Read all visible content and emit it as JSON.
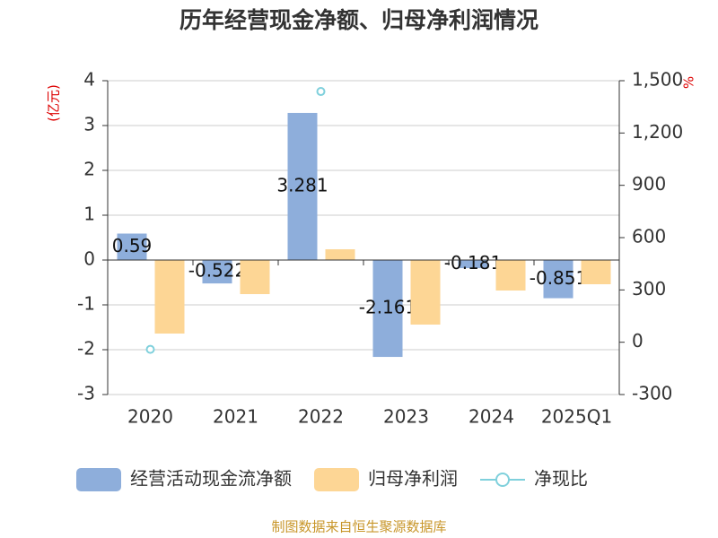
{
  "chart_data": {
    "type": "bar",
    "title": "历年经营现金净额、归母净利润情况",
    "y_label": "(亿元)",
    "y2_label": "%",
    "source": "制图数据来自恒生聚源数据库",
    "categories": [
      "2020",
      "2021",
      "2022",
      "2023",
      "2024",
      "2025Q1"
    ],
    "series": [
      {
        "name": "经营活动现金流净额",
        "type": "bar",
        "color": "#8eaedb",
        "values": [
          0.59,
          -0.522,
          3.281,
          -2.161,
          -0.181,
          -0.851
        ]
      },
      {
        "name": "归母净利润",
        "type": "bar",
        "color": "#fdd695",
        "values": [
          -1.64,
          -0.76,
          0.24,
          -1.44,
          -0.68,
          -0.54
        ]
      },
      {
        "name": "净现比",
        "type": "line",
        "axis": "y2",
        "color": "#7fd0dc",
        "values": [
          -41,
          null,
          1438,
          null,
          null,
          null
        ]
      }
    ],
    "ylim": [
      -3,
      4
    ],
    "yticks": [
      -3,
      -2,
      -1,
      0,
      1,
      2,
      3,
      4
    ],
    "y2lim": [
      -300,
      1500
    ],
    "y2ticks": [
      -300,
      0,
      300,
      600,
      900,
      {
        "value": 1200,
        "label": "1,200"
      },
      {
        "value": 1500,
        "label": "1,500"
      }
    ],
    "grid": true,
    "legend": "bottom"
  }
}
